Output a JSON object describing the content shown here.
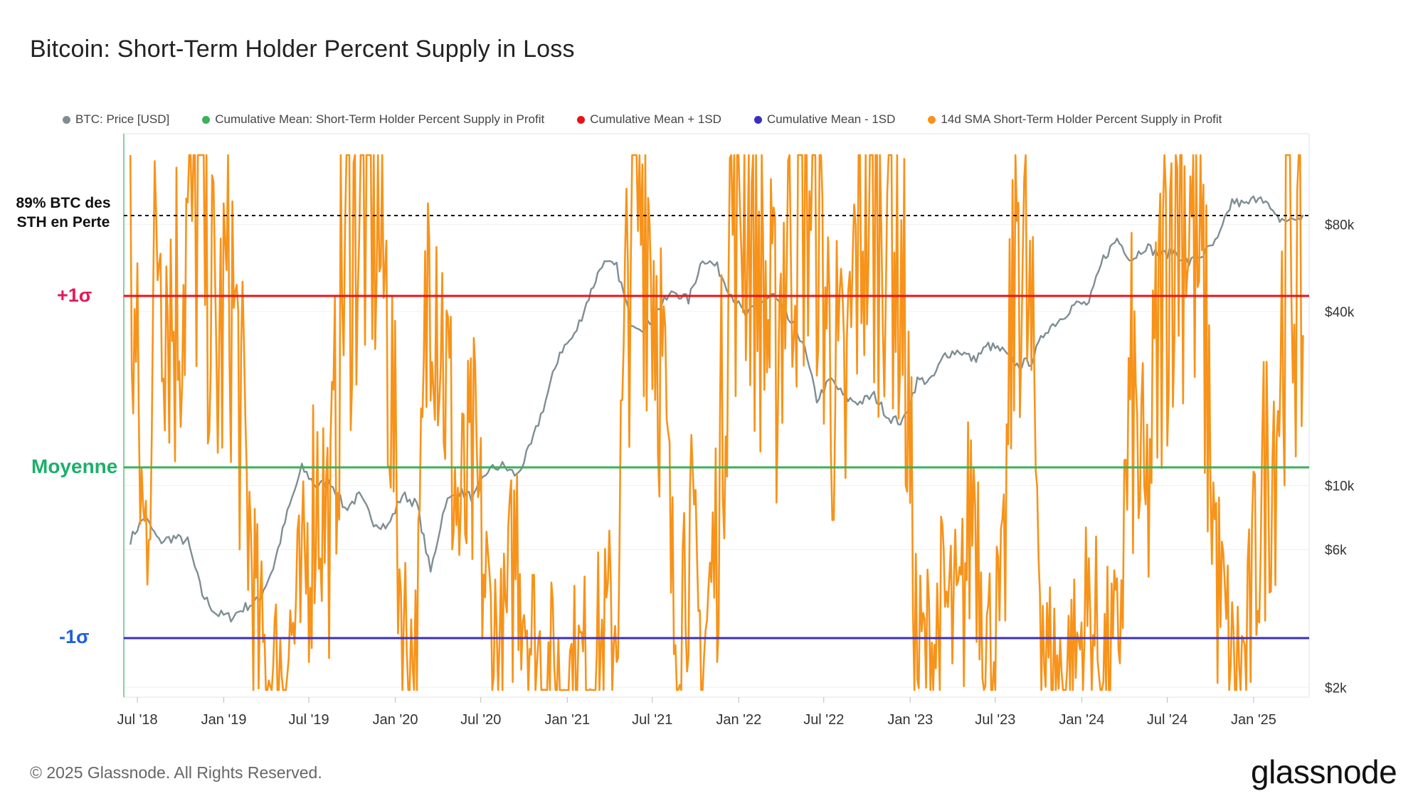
{
  "title": "Bitcoin: Short-Term Holder Percent Supply in Loss",
  "legend": [
    {
      "label": "BTC: Price [USD]",
      "color": "#7f8e95"
    },
    {
      "label": "Cumulative Mean: Short-Term Holder Percent Supply in Profit",
      "color": "#3cb05a"
    },
    {
      "label": "Cumulative Mean + 1SD",
      "color": "#e8131a"
    },
    {
      "label": "Cumulative Mean - 1SD",
      "color": "#3b2fbf"
    },
    {
      "label": "14d SMA Short-Term Holder Percent Supply in Profit",
      "color": "#f7931a"
    }
  ],
  "labels": {
    "plus_sigma": "+1σ",
    "mean": "Moyenne",
    "minus_sigma": "-1σ",
    "annotation": "89% BTC des STH en Perte"
  },
  "footer": {
    "copyright": "© 2025 Glassnode. All Rights Reserved.",
    "logo": "glassnode"
  },
  "chart_data": {
    "type": "line",
    "x_axis": {
      "type": "date",
      "ticks": [
        "Jul '18",
        "Jan '19",
        "Jul '19",
        "Jan '20",
        "Jul '20",
        "Jan '21",
        "Jul '21",
        "Jan '22",
        "Jul '22",
        "Jan '23",
        "Jul '23",
        "Jan '24",
        "Jul '24",
        "Jan '25"
      ],
      "range": [
        "2018-06",
        "2025-04"
      ]
    },
    "y_right": {
      "scale": "log",
      "ticks": [
        "$2k",
        "$6k",
        "$10k",
        "$40k",
        "$80k"
      ]
    },
    "reference_lines": [
      {
        "name": "Cumulative Mean + 1SD",
        "label": "+1σ",
        "color": "#e8131a"
      },
      {
        "name": "Cumulative Mean",
        "label": "Moyenne",
        "color": "#3cb05a"
      },
      {
        "name": "Cumulative Mean - 1SD",
        "label": "-1σ",
        "color": "#3b2fbf"
      },
      {
        "name": "89% threshold",
        "label": "89% BTC des STH en Perte",
        "color": "#000000",
        "style": "dashed"
      }
    ],
    "series": [
      {
        "name": "BTC: Price [USD]",
        "color": "#7f8e95",
        "axis": "right-log",
        "points": [
          [
            "2018-06",
            6500
          ],
          [
            "2018-07",
            7800
          ],
          [
            "2018-08",
            6400
          ],
          [
            "2018-09",
            6600
          ],
          [
            "2018-10",
            6400
          ],
          [
            "2018-11",
            4200
          ],
          [
            "2018-12",
            3600
          ],
          [
            "2019-01",
            3500
          ],
          [
            "2019-02",
            3800
          ],
          [
            "2019-03",
            4000
          ],
          [
            "2019-04",
            5200
          ],
          [
            "2019-05",
            8000
          ],
          [
            "2019-06",
            11500
          ],
          [
            "2019-07",
            10000
          ],
          [
            "2019-08",
            10300
          ],
          [
            "2019-09",
            8300
          ],
          [
            "2019-10",
            9200
          ],
          [
            "2019-11",
            7500
          ],
          [
            "2019-12",
            7200
          ],
          [
            "2020-01",
            9300
          ],
          [
            "2020-02",
            8600
          ],
          [
            "2020-03",
            5000
          ],
          [
            "2020-04",
            8700
          ],
          [
            "2020-05",
            9500
          ],
          [
            "2020-06",
            9100
          ],
          [
            "2020-07",
            11300
          ],
          [
            "2020-08",
            11700
          ],
          [
            "2020-09",
            10800
          ],
          [
            "2020-10",
            13800
          ],
          [
            "2020-11",
            19700
          ],
          [
            "2020-12",
            29000
          ],
          [
            "2021-01",
            33000
          ],
          [
            "2021-02",
            45000
          ],
          [
            "2021-03",
            58800
          ],
          [
            "2021-04",
            57000
          ],
          [
            "2021-05",
            37000
          ],
          [
            "2021-06",
            35000
          ],
          [
            "2021-07",
            41500
          ],
          [
            "2021-08",
            47000
          ],
          [
            "2021-09",
            43800
          ],
          [
            "2021-10",
            61300
          ],
          [
            "2021-11",
            57000
          ],
          [
            "2021-12",
            46000
          ],
          [
            "2022-01",
            38500
          ],
          [
            "2022-02",
            43200
          ],
          [
            "2022-03",
            45500
          ],
          [
            "2022-04",
            37700
          ],
          [
            "2022-05",
            31800
          ],
          [
            "2022-06",
            19800
          ],
          [
            "2022-07",
            23300
          ],
          [
            "2022-08",
            20000
          ],
          [
            "2022-09",
            19400
          ],
          [
            "2022-10",
            20500
          ],
          [
            "2022-11",
            17200
          ],
          [
            "2022-12",
            16500
          ],
          [
            "2023-01",
            23100
          ],
          [
            "2023-02",
            23100
          ],
          [
            "2023-03",
            28500
          ],
          [
            "2023-04",
            29300
          ],
          [
            "2023-05",
            27200
          ],
          [
            "2023-06",
            30500
          ],
          [
            "2023-07",
            29200
          ],
          [
            "2023-08",
            26000
          ],
          [
            "2023-09",
            27000
          ],
          [
            "2023-10",
            34500
          ],
          [
            "2023-11",
            37700
          ],
          [
            "2023-12",
            42300
          ],
          [
            "2024-01",
            42600
          ],
          [
            "2024-02",
            61200
          ],
          [
            "2024-03",
            71300
          ],
          [
            "2024-04",
            60600
          ],
          [
            "2024-05",
            67500
          ],
          [
            "2024-06",
            62700
          ],
          [
            "2024-07",
            64600
          ],
          [
            "2024-08",
            58900
          ],
          [
            "2024-09",
            63300
          ],
          [
            "2024-10",
            70300
          ],
          [
            "2024-11",
            96400
          ],
          [
            "2024-12",
            93400
          ],
          [
            "2025-01",
            102000
          ],
          [
            "2025-02",
            84300
          ],
          [
            "2025-03",
            82500
          ],
          [
            "2025-04",
            85000
          ]
        ]
      },
      {
        "name": "14d SMA Short-Term Holder Percent Supply in Profit",
        "color": "#f7931a",
        "axis": "left-percent",
        "points": [
          [
            "2018-06",
            80
          ],
          [
            "2018-07",
            25
          ],
          [
            "2018-08",
            92
          ],
          [
            "2018-09",
            70
          ],
          [
            "2018-10",
            85
          ],
          [
            "2018-11",
            96
          ],
          [
            "2018-12",
            60
          ],
          [
            "2019-01",
            78
          ],
          [
            "2019-02",
            40
          ],
          [
            "2019-03",
            8
          ],
          [
            "2019-04",
            2
          ],
          [
            "2019-05",
            8
          ],
          [
            "2019-06",
            15
          ],
          [
            "2019-07",
            40
          ],
          [
            "2019-08",
            30
          ],
          [
            "2019-09",
            85
          ],
          [
            "2019-10",
            92
          ],
          [
            "2019-11",
            94
          ],
          [
            "2019-12",
            70
          ],
          [
            "2020-01",
            12
          ],
          [
            "2020-02",
            5
          ],
          [
            "2020-03",
            96
          ],
          [
            "2020-04",
            60
          ],
          [
            "2020-05",
            30
          ],
          [
            "2020-06",
            40
          ],
          [
            "2020-07",
            15
          ],
          [
            "2020-08",
            5
          ],
          [
            "2020-09",
            30
          ],
          [
            "2020-10",
            10
          ],
          [
            "2020-11",
            3
          ],
          [
            "2020-12",
            2
          ],
          [
            "2021-01",
            3
          ],
          [
            "2021-02",
            5
          ],
          [
            "2021-03",
            8
          ],
          [
            "2021-04",
            15
          ],
          [
            "2021-05",
            92
          ],
          [
            "2021-06",
            96
          ],
          [
            "2021-07",
            70
          ],
          [
            "2021-08",
            12
          ],
          [
            "2021-09",
            30
          ],
          [
            "2021-10",
            5
          ],
          [
            "2021-11",
            30
          ],
          [
            "2021-12",
            92
          ],
          [
            "2022-01",
            96
          ],
          [
            "2022-02",
            80
          ],
          [
            "2022-03",
            60
          ],
          [
            "2022-04",
            90
          ],
          [
            "2022-05",
            97
          ],
          [
            "2022-06",
            98
          ],
          [
            "2022-07",
            60
          ],
          [
            "2022-08",
            50
          ],
          [
            "2022-09",
            93
          ],
          [
            "2022-10",
            90
          ],
          [
            "2022-11",
            97
          ],
          [
            "2022-12",
            75
          ],
          [
            "2023-01",
            5
          ],
          [
            "2023-02",
            8
          ],
          [
            "2023-03",
            15
          ],
          [
            "2023-04",
            10
          ],
          [
            "2023-05",
            40
          ],
          [
            "2023-06",
            8
          ],
          [
            "2023-07",
            12
          ],
          [
            "2023-08",
            95
          ],
          [
            "2023-09",
            60
          ],
          [
            "2023-10",
            5
          ],
          [
            "2023-11",
            3
          ],
          [
            "2023-12",
            5
          ],
          [
            "2024-01",
            15
          ],
          [
            "2024-02",
            4
          ],
          [
            "2024-03",
            6
          ],
          [
            "2024-04",
            55
          ],
          [
            "2024-05",
            30
          ],
          [
            "2024-06",
            70
          ],
          [
            "2024-07",
            96
          ],
          [
            "2024-08",
            92
          ],
          [
            "2024-09",
            70
          ],
          [
            "2024-10",
            20
          ],
          [
            "2024-11",
            3
          ],
          [
            "2024-12",
            5
          ],
          [
            "2025-01",
            35
          ],
          [
            "2025-02",
            50
          ],
          [
            "2025-03",
            85
          ],
          [
            "2025-04",
            70
          ]
        ]
      }
    ]
  }
}
